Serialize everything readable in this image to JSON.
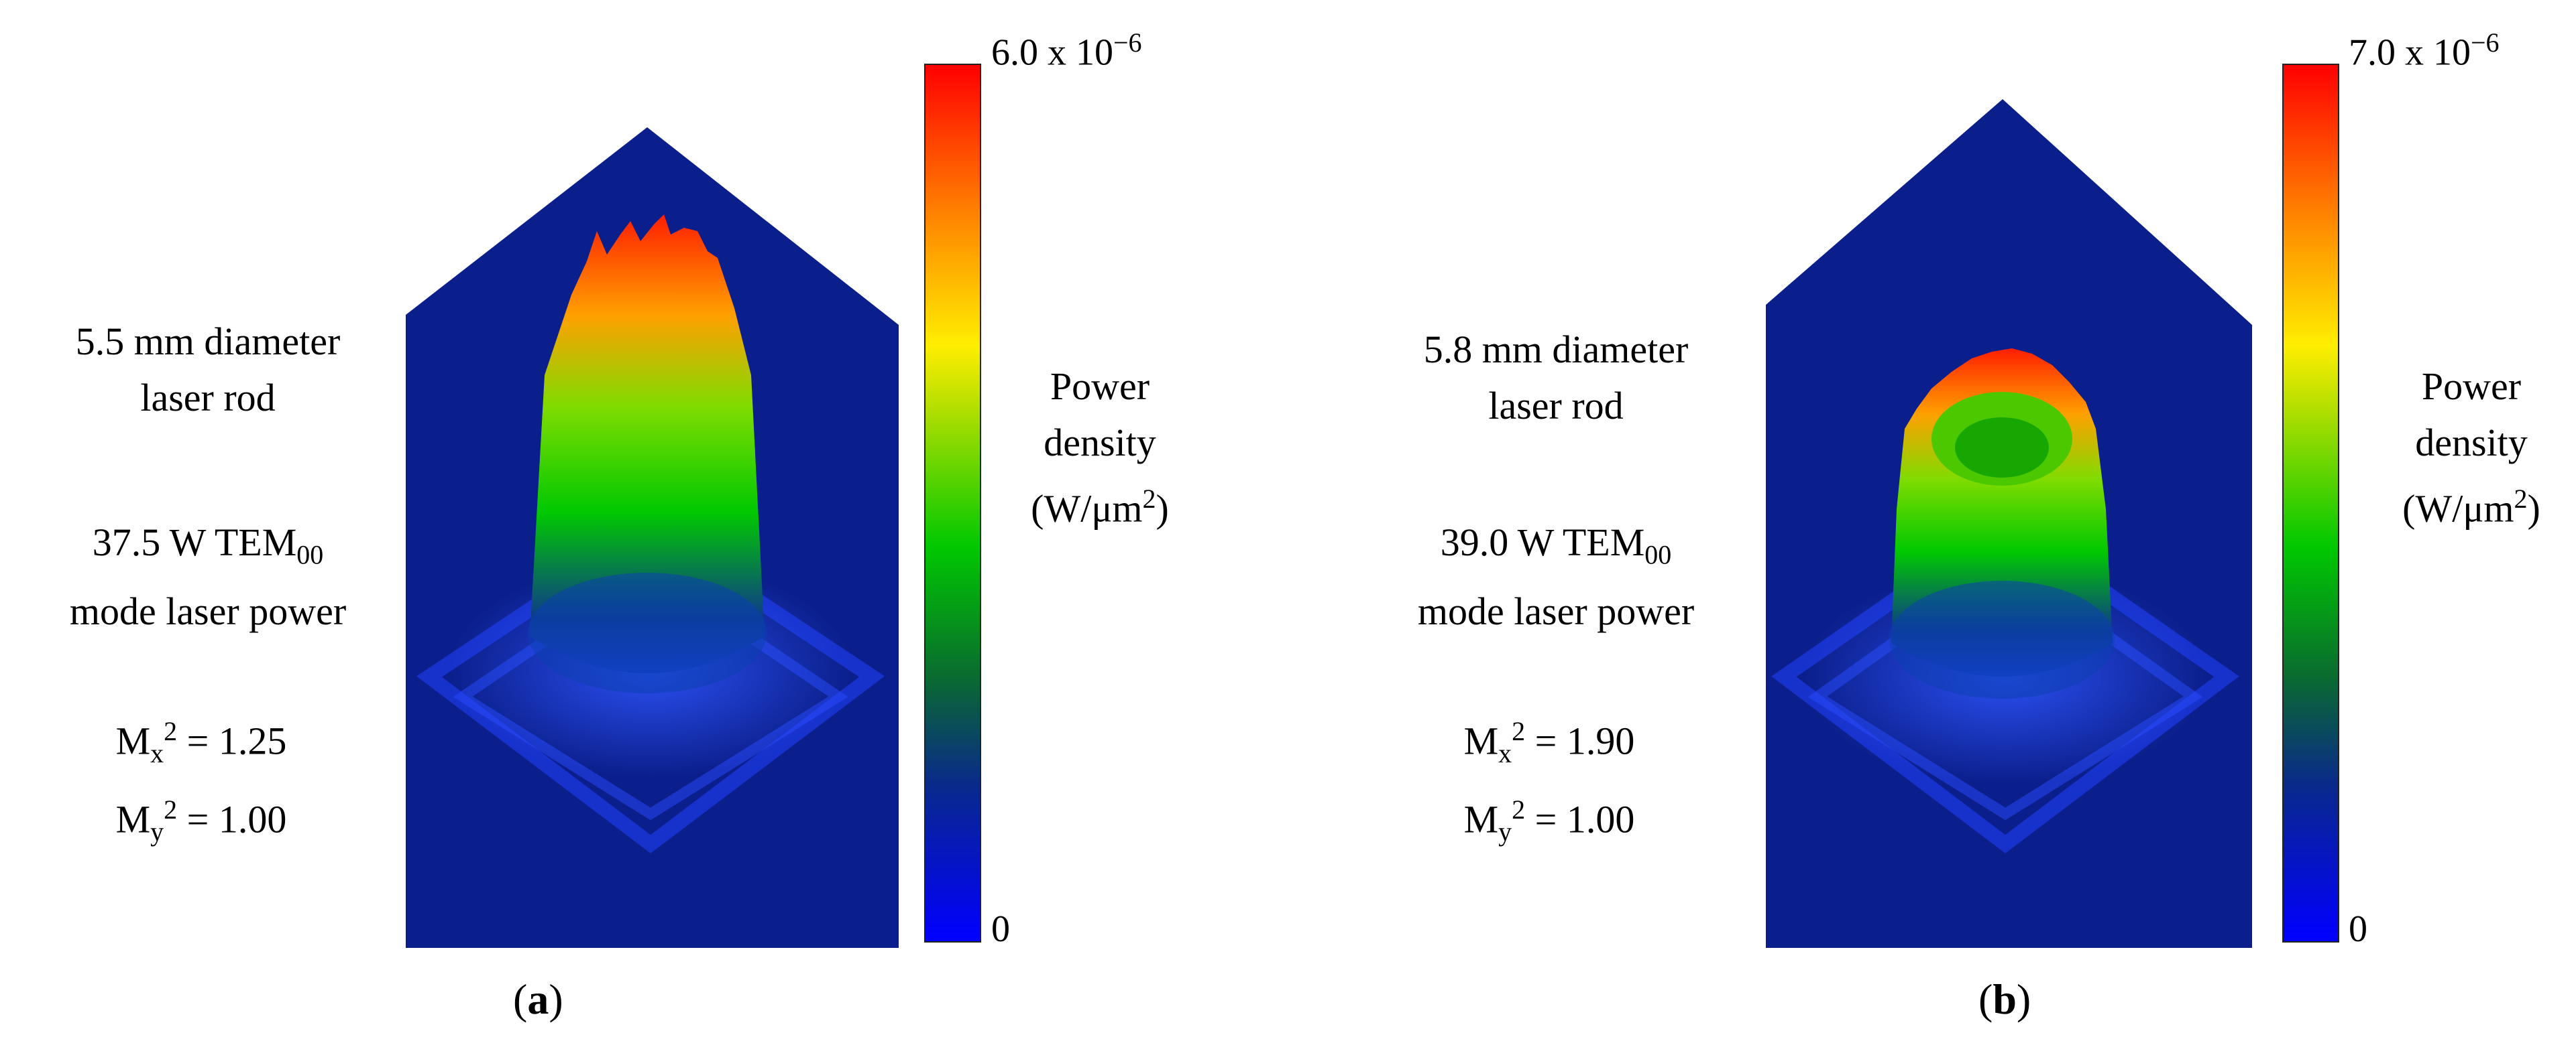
{
  "panels": [
    {
      "caption": "a",
      "rod": {
        "line1": "5.5 mm diameter",
        "line2": "laser rod"
      },
      "power": {
        "value_prefix": "37.5 W TEM",
        "subscript": "00",
        "line2": "mode laser power"
      },
      "mx": {
        "symbol": "M",
        "sub": "x",
        "sup": "2",
        "value": " = 1.25"
      },
      "my": {
        "symbol": "M",
        "sub": "y",
        "sup": "2",
        "value": " = 1.00"
      },
      "colorbar": {
        "max_mantissa": "6.0 x 10",
        "max_exponent": "−6",
        "min": "0",
        "label1": "Power",
        "label2": "density",
        "label3_prefix": "(W/μm",
        "label3_sup": "2",
        "label3_suffix": ")"
      }
    },
    {
      "caption": "b",
      "rod": {
        "line1": "5.8 mm diameter",
        "line2": "laser rod"
      },
      "power": {
        "value_prefix": "39.0 W TEM",
        "subscript": "00",
        "line2": "mode laser power"
      },
      "mx": {
        "symbol": "M",
        "sub": "x",
        "sup": "2",
        "value": " = 1.90"
      },
      "my": {
        "symbol": "M",
        "sub": "y",
        "sup": "2",
        "value": " = 1.00"
      },
      "colorbar": {
        "max_mantissa": "7.0 x 10",
        "max_exponent": "−6",
        "min": "0",
        "label1": "Power",
        "label2": "density",
        "label3_prefix": "(W/μm",
        "label3_sup": "2",
        "label3_suffix": ")"
      }
    }
  ],
  "chart_data": [
    {
      "type": "heatmap",
      "title": "",
      "subtitle": "37.5 W TEM00 mode laser power, 5.5 mm diameter laser rod",
      "zlabel": "Power density (W/μm²)",
      "zlim": [
        0,
        6e-06
      ],
      "profile": "flat-top cylindrical peak",
      "mx2": 1.25,
      "my2": 1.0,
      "colormap": [
        "#0000ff",
        "#0a2d7a",
        "#00c400",
        "#ffff00",
        "#ff8a00",
        "#ff0000"
      ]
    },
    {
      "type": "heatmap",
      "title": "",
      "subtitle": "39.0 W TEM00 mode laser power, 5.8 mm diameter laser rod",
      "zlabel": "Power density (W/μm²)",
      "zlim": [
        0,
        7e-06
      ],
      "profile": "ring (donut) shaped peak",
      "mx2": 1.9,
      "my2": 1.0,
      "colormap": [
        "#0000ff",
        "#0a2d7a",
        "#00c400",
        "#ffff00",
        "#ff8a00",
        "#ff0000"
      ]
    }
  ]
}
